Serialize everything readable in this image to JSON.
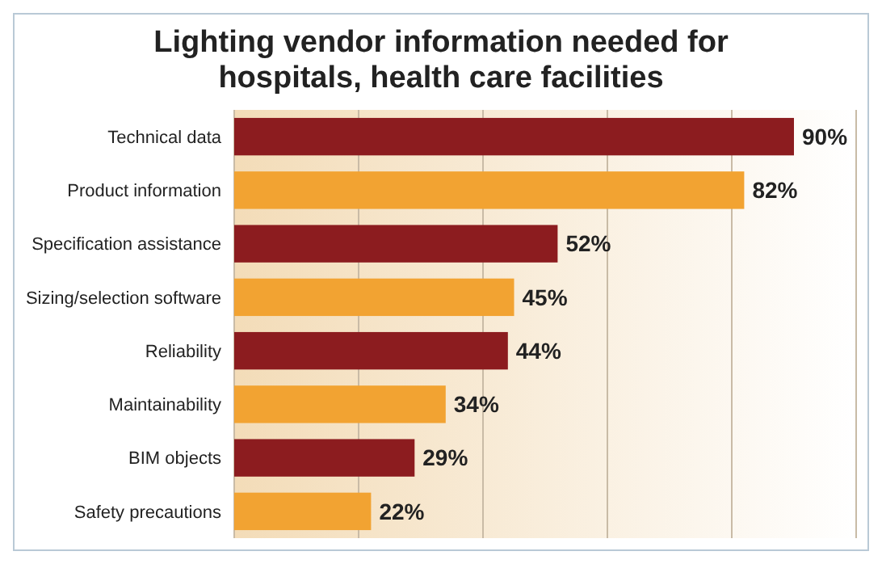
{
  "chart_data": {
    "type": "bar",
    "orientation": "horizontal",
    "title": "Lighting vendor information needed for hospitals, health care facilities",
    "categories": [
      "Technical data",
      "Product information",
      "Specification assistance",
      "Sizing/selection software",
      "Reliability",
      "Maintainability",
      "BIM objects",
      "Safety precautions"
    ],
    "values": [
      90,
      82,
      52,
      45,
      44,
      34,
      29,
      22
    ],
    "colors": [
      "#8c1c1f",
      "#f2a332",
      "#8c1c1f",
      "#f2a332",
      "#8c1c1f",
      "#f2a332",
      "#8c1c1f",
      "#f2a332"
    ],
    "value_labels": [
      "90%",
      "82%",
      "52%",
      "45%",
      "44%",
      "34%",
      "29%",
      "22%"
    ],
    "xlim": [
      0,
      100
    ],
    "xticks": [
      {
        "value": 0,
        "label": null
      },
      {
        "value": 20,
        "label": null
      },
      {
        "value": 40,
        "label": null
      },
      {
        "value": 60,
        "label": null
      },
      {
        "value": 80,
        "label": null
      },
      {
        "value": 100,
        "label": null
      }
    ],
    "grid": "x"
  }
}
